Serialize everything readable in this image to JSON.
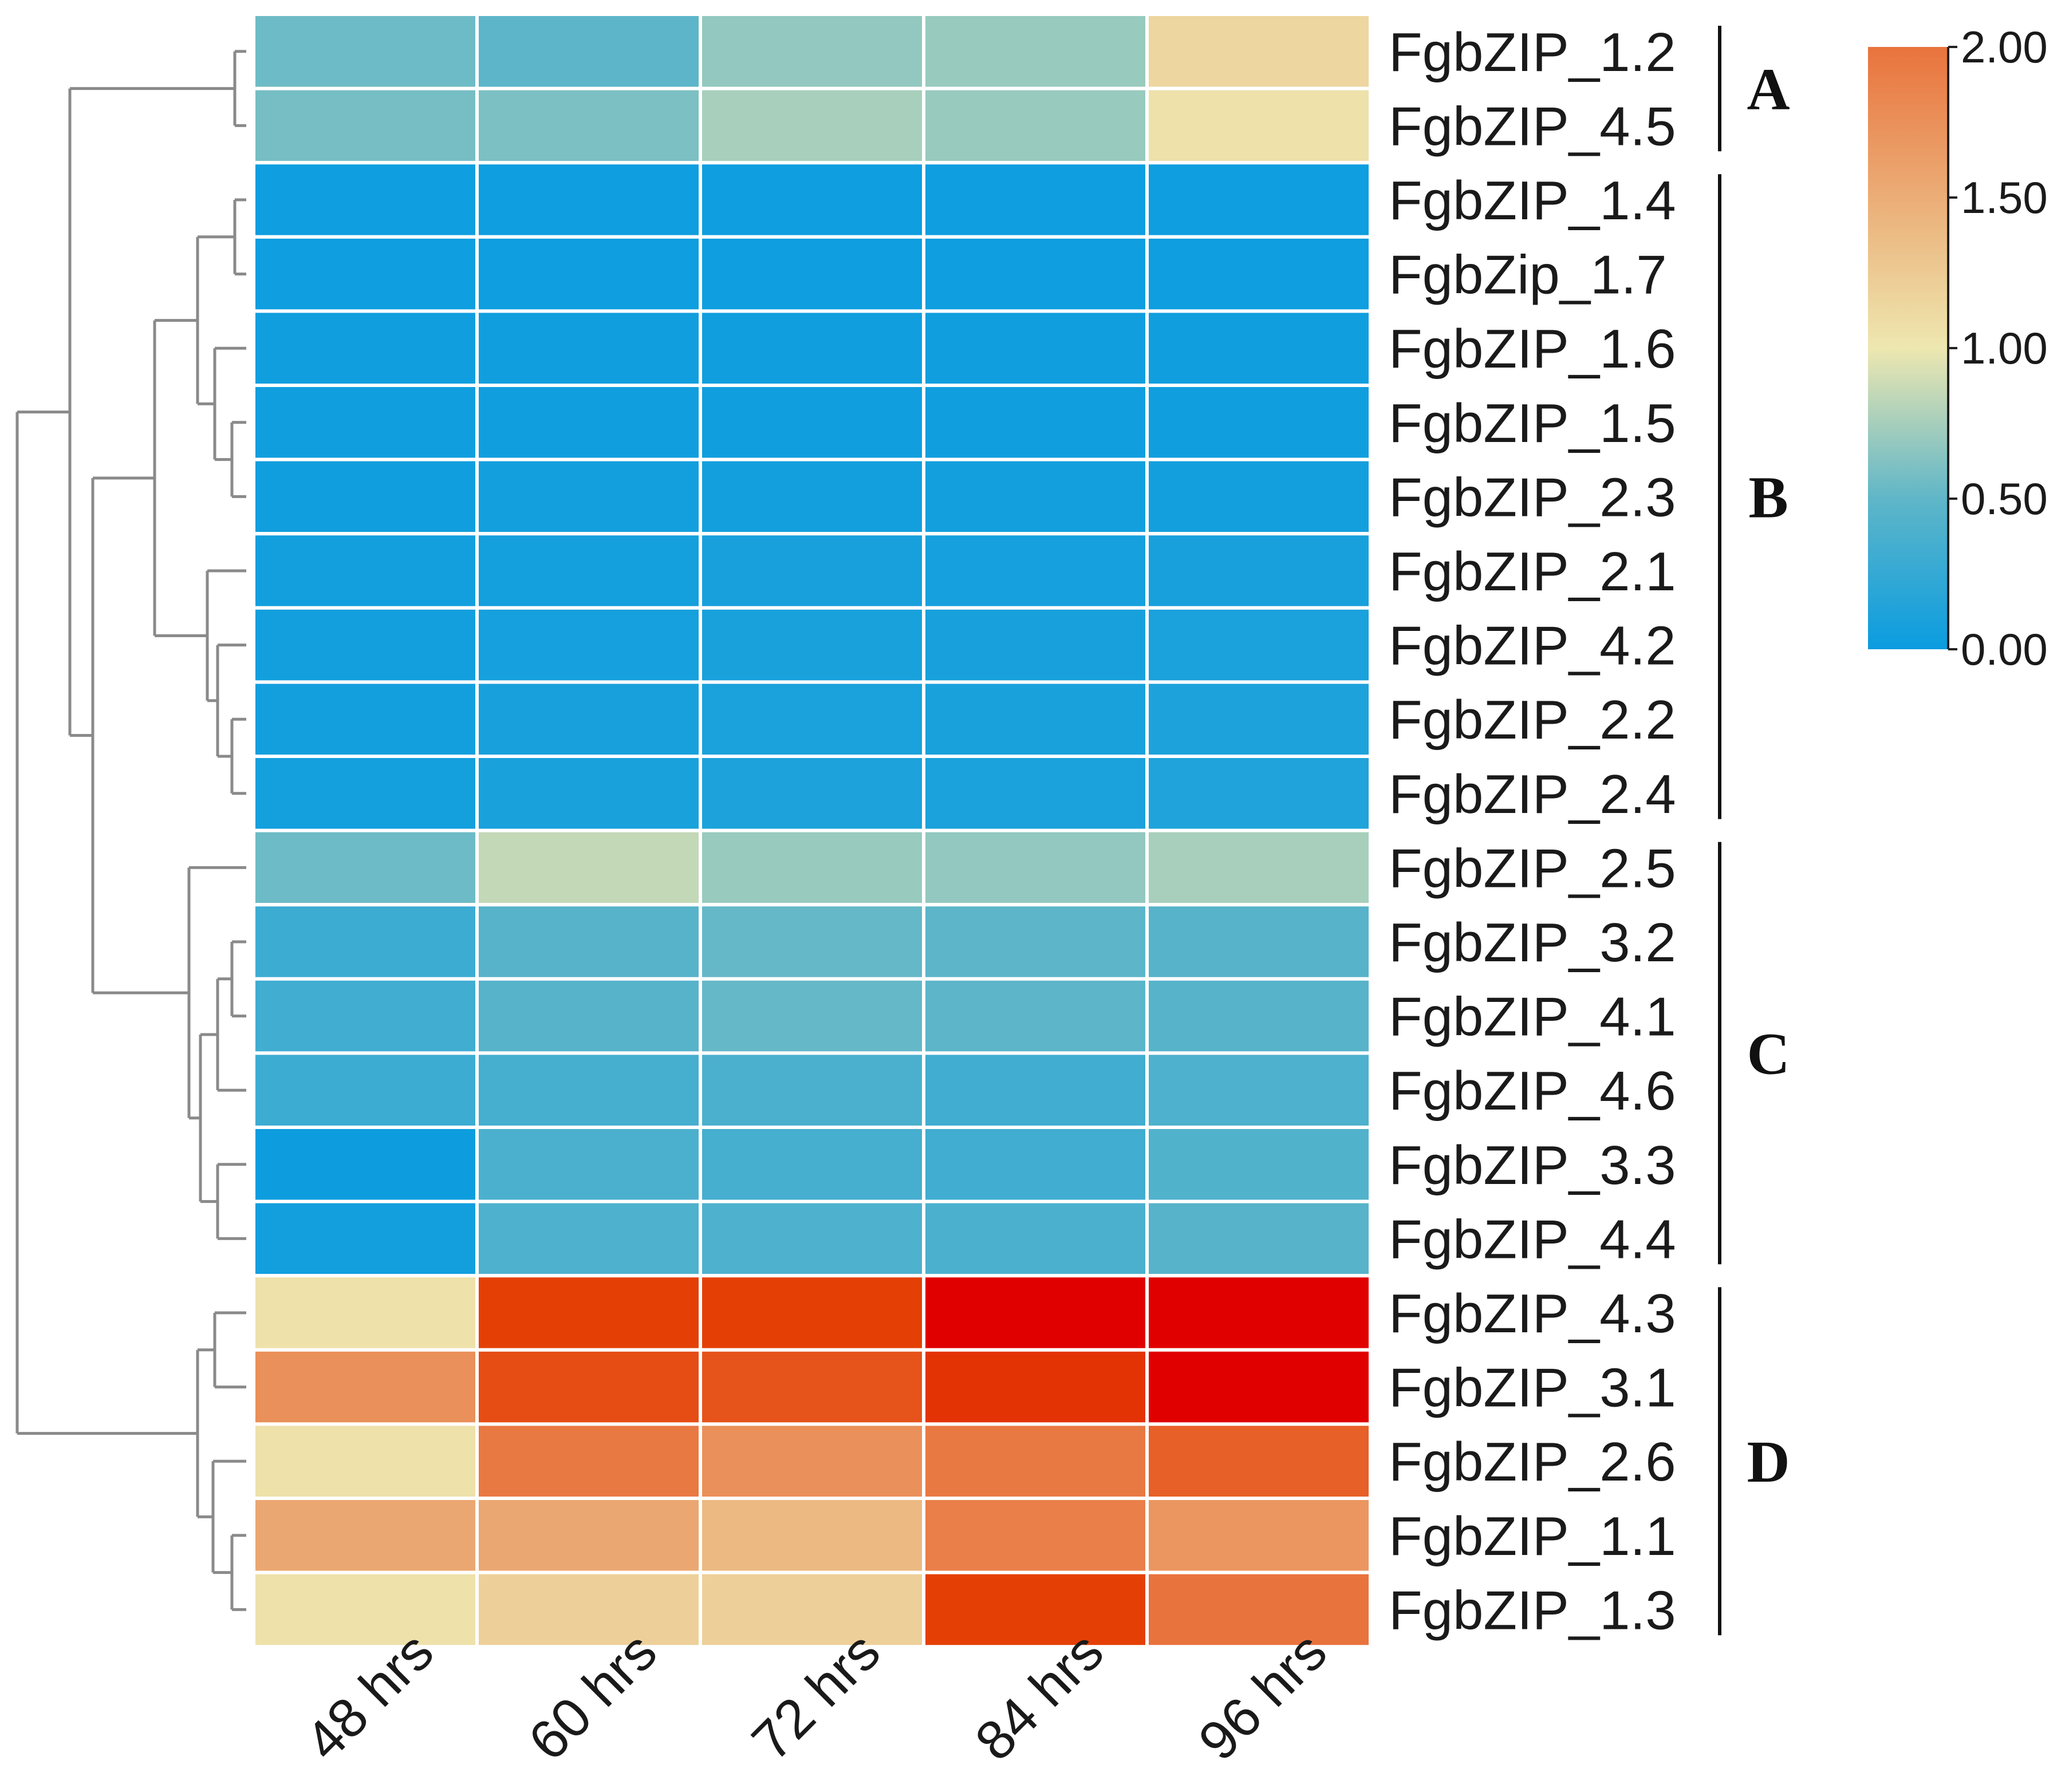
{
  "chart_data": {
    "type": "heatmap",
    "columns": [
      "48 hrs",
      "60 hrs",
      "72 hrs",
      "84 hrs",
      "96 hrs"
    ],
    "rows": [
      "FgbZIP_1.2",
      "FgbZIP_4.5",
      "FgbZIP_1.4",
      "FgbZip_1.7",
      "FgbZIP_1.6",
      "FgbZIP_1.5",
      "FgbZIP_2.3",
      "FgbZIP_2.1",
      "FgbZIP_4.2",
      "FgbZIP_2.2",
      "FgbZIP_2.4",
      "FgbZIP_2.5",
      "FgbZIP_3.2",
      "FgbZIP_4.1",
      "FgbZIP_4.6",
      "FgbZIP_3.3",
      "FgbZIP_4.4",
      "FgbZIP_4.3",
      "FgbZIP_3.1",
      "FgbZIP_2.6",
      "FgbZIP_1.1",
      "FgbZIP_1.3"
    ],
    "values": [
      [
        0.55,
        0.48,
        0.68,
        0.7,
        1.15
      ],
      [
        0.58,
        0.6,
        0.75,
        0.7,
        1.05
      ],
      [
        0.03,
        0.03,
        0.03,
        0.03,
        0.03
      ],
      [
        0.03,
        0.03,
        0.03,
        0.03,
        0.03
      ],
      [
        0.04,
        0.04,
        0.04,
        0.04,
        0.04
      ],
      [
        0.04,
        0.04,
        0.04,
        0.04,
        0.04
      ],
      [
        0.04,
        0.05,
        0.05,
        0.05,
        0.05
      ],
      [
        0.05,
        0.06,
        0.08,
        0.07,
        0.08
      ],
      [
        0.05,
        0.07,
        0.09,
        0.08,
        0.1
      ],
      [
        0.05,
        0.08,
        0.1,
        0.09,
        0.11
      ],
      [
        0.06,
        0.09,
        0.11,
        0.1,
        0.13
      ],
      [
        0.55,
        0.85,
        0.7,
        0.68,
        0.75
      ],
      [
        0.3,
        0.45,
        0.52,
        0.48,
        0.45
      ],
      [
        0.32,
        0.45,
        0.52,
        0.48,
        0.45
      ],
      [
        0.3,
        0.35,
        0.38,
        0.32,
        0.4
      ],
      [
        0.02,
        0.38,
        0.35,
        0.32,
        0.42
      ],
      [
        0.05,
        0.4,
        0.4,
        0.38,
        0.45
      ],
      [
        1.05,
        2.4,
        2.4,
        2.9,
        2.9
      ],
      [
        1.75,
        2.3,
        2.25,
        2.5,
        2.9
      ],
      [
        1.05,
        1.95,
        1.75,
        1.95,
        2.15
      ],
      [
        1.55,
        1.55,
        1.4,
        1.9,
        1.7
      ],
      [
        1.05,
        1.2,
        1.2,
        2.4,
        2.0
      ]
    ],
    "groups": [
      {
        "label": "A",
        "start": 0,
        "end": 1
      },
      {
        "label": "B",
        "start": 2,
        "end": 10
      },
      {
        "label": "C",
        "start": 11,
        "end": 16
      },
      {
        "label": "D",
        "start": 17,
        "end": 21
      }
    ],
    "colorbar": {
      "min": 0.0,
      "max": 2.0,
      "ticks": [
        "2.00",
        "1.50",
        "1.00",
        "0.50",
        "0.00"
      ],
      "tick_values": [
        2.0,
        1.5,
        1.0,
        0.5,
        0.0
      ],
      "colors": [
        "#0a9ce0",
        "#5fb6c8",
        "#eee7b0",
        "#e9733d",
        "#e00000"
      ]
    },
    "dendrogram": "row clustering tree shown on left",
    "title": "",
    "xlabel": "",
    "ylabel": ""
  }
}
